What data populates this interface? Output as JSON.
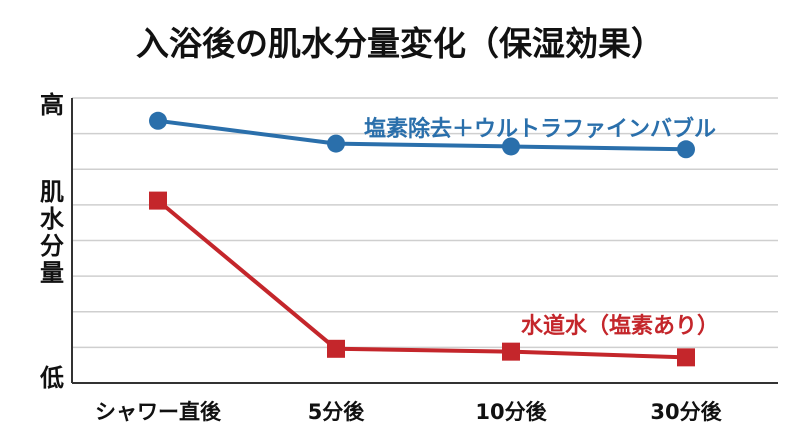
{
  "chart_data": {
    "type": "line",
    "title": "入浴後の肌水分量変化（保湿効果）",
    "ylabel": "肌水分量",
    "y_top_label": "高",
    "y_bottom_label": "低",
    "categories": [
      "シャワー直後",
      "5分後",
      "10分後",
      "30分後"
    ],
    "ylim": [
      0,
      100
    ],
    "grid": true,
    "series": [
      {
        "name": "塩素除去＋ウルトラファインバブル",
        "color": "#2a6fab",
        "marker": "circle",
        "values": [
          92,
          84,
          83,
          82
        ]
      },
      {
        "name": "水道水（塩素あり）",
        "color": "#c4262b",
        "marker": "square",
        "values": [
          64,
          12,
          11,
          9
        ]
      }
    ]
  }
}
